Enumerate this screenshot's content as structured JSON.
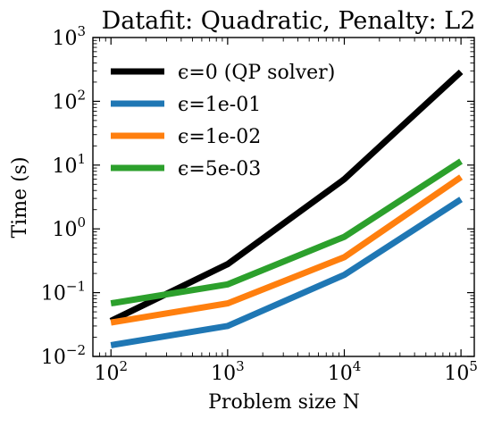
{
  "chart_data": {
    "type": "line",
    "title": "Datafit: Quadratic, Penalty: L2",
    "xlabel": "Problem size N",
    "ylabel": "Time (s)",
    "xscale": "log",
    "yscale": "log",
    "xlim": [
      70,
      130000
    ],
    "ylim": [
      0.01,
      1000
    ],
    "x": [
      100,
      1000,
      10000,
      100000
    ],
    "x_ticks": [
      {
        "base": "10",
        "exp": "2",
        "value": 100
      },
      {
        "base": "10",
        "exp": "3",
        "value": 1000
      },
      {
        "base": "10",
        "exp": "4",
        "value": 10000
      },
      {
        "base": "10",
        "exp": "5",
        "value": 100000
      }
    ],
    "y_ticks": [
      {
        "base": "10",
        "exp": "−2",
        "value": 0.01
      },
      {
        "base": "10",
        "exp": "−1",
        "value": 0.1
      },
      {
        "base": "10",
        "exp": "0",
        "value": 1
      },
      {
        "base": "10",
        "exp": "1",
        "value": 10
      },
      {
        "base": "10",
        "exp": "2",
        "value": 100
      },
      {
        "base": "10",
        "exp": "3",
        "value": 1000
      }
    ],
    "grid": false,
    "legend_position": "top-left",
    "series": [
      {
        "name": "ϵ=0 (QP solver)",
        "color": "#000000",
        "values": [
          0.036,
          0.28,
          6.0,
          290
        ]
      },
      {
        "name": "ϵ=1e-01",
        "color": "#1f77b4",
        "values": [
          0.015,
          0.03,
          0.19,
          2.9
        ]
      },
      {
        "name": "ϵ=1e-02",
        "color": "#ff7f0e",
        "values": [
          0.034,
          0.068,
          0.36,
          6.5
        ]
      },
      {
        "name": "ϵ=5e-03",
        "color": "#2ca02c",
        "values": [
          0.068,
          0.135,
          0.75,
          11.5
        ]
      }
    ]
  }
}
